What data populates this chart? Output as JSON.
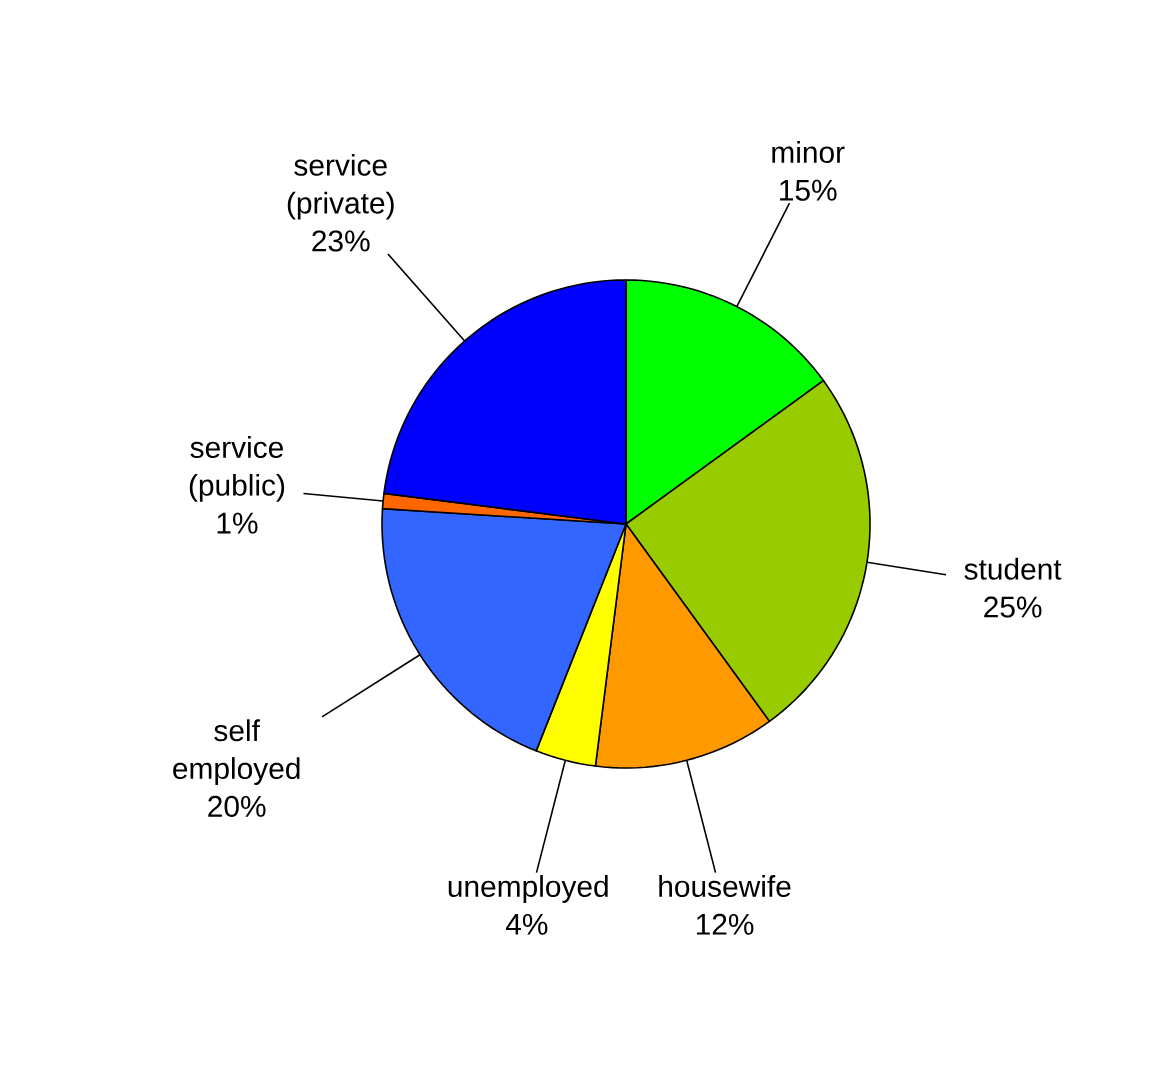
{
  "chart_data": {
    "type": "pie",
    "categories": [
      "minor",
      "student",
      "housewife",
      "unemployed",
      "self employed",
      "service (public)",
      "service (private)"
    ],
    "values": [
      15,
      25,
      12,
      4,
      20,
      1,
      23
    ],
    "value_labels": [
      "15%",
      "25%",
      "12%",
      "4%",
      "20%",
      "1%",
      "23%"
    ],
    "colors": [
      "#00ff00",
      "#99cc00",
      "#ff9900",
      "#ffff00",
      "#3366ff",
      "#ff6600",
      "#0000ff"
    ]
  }
}
